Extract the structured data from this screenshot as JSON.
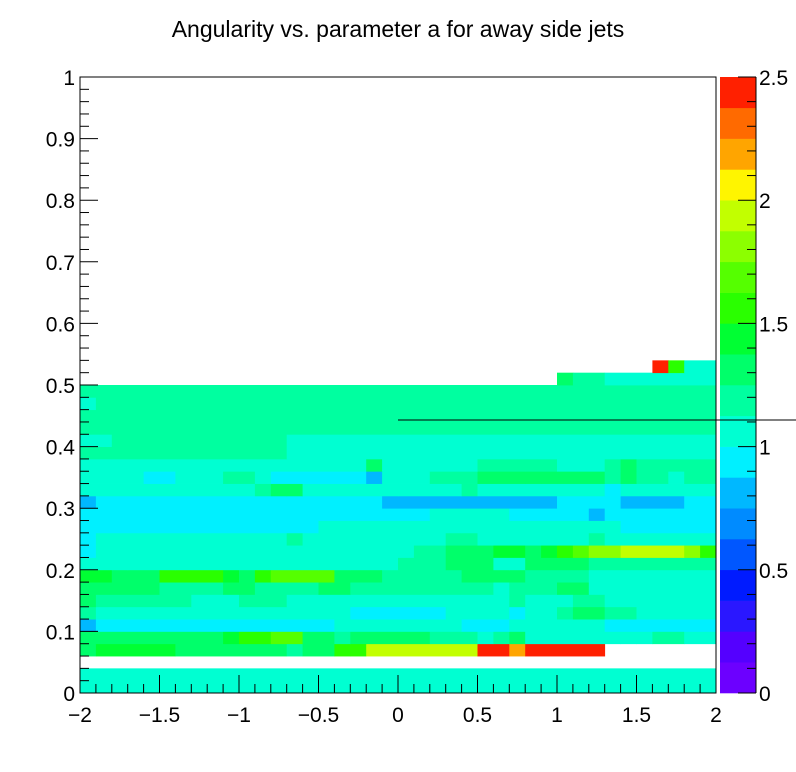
{
  "chart_data": {
    "type": "heatmap",
    "title": "Angularity vs. parameter a for away side jets",
    "xlabel": "",
    "ylabel": "",
    "xlim": [
      -2,
      2
    ],
    "ylim": [
      0,
      1
    ],
    "x_ticks": [
      "−2",
      "−1.5",
      "−1",
      "−0.5",
      "0",
      "0.5",
      "1",
      "1.5",
      "2"
    ],
    "y_ticks": [
      "0",
      "0.1",
      "0.2",
      "0.3",
      "0.4",
      "0.5",
      "0.6",
      "0.7",
      "0.8",
      "0.9",
      "1"
    ],
    "z_ticks": [
      "0",
      "0.5",
      "1",
      "1.5",
      "2",
      "2.5"
    ],
    "zlim": [
      0,
      2.5
    ],
    "grid": false,
    "n_x_bins": 40,
    "n_y_bins": 50,
    "x_bin_width": 0.1,
    "y_bin_width": 0.02,
    "rows": [
      {
        "y": 0.0,
        "cells": [
          [
            -2.0,
            2.0,
            1.05
          ]
        ]
      },
      {
        "y": 0.02,
        "cells": [
          [
            -2.0,
            2.0,
            1.05
          ]
        ]
      },
      {
        "y": 0.06,
        "cells": [
          [
            -2.0,
            -1.9,
            1.35
          ],
          [
            -1.9,
            -1.4,
            1.45
          ],
          [
            -1.4,
            -0.7,
            1.35
          ],
          [
            -0.7,
            -0.6,
            1.15
          ],
          [
            -0.6,
            -0.4,
            1.3
          ],
          [
            -0.4,
            -0.3,
            1.55
          ],
          [
            -0.3,
            -0.2,
            1.6
          ],
          [
            -0.2,
            0.5,
            1.9
          ],
          [
            0.5,
            0.7,
            2.5
          ],
          [
            0.7,
            0.8,
            2.2
          ],
          [
            0.8,
            1.3,
            2.5
          ]
        ]
      },
      {
        "y": 0.08,
        "cells": [
          [
            -2.0,
            -1.3,
            1.25
          ],
          [
            -1.3,
            -1.1,
            1.35
          ],
          [
            -1.1,
            -1.0,
            1.4
          ],
          [
            -1.0,
            -0.8,
            1.6
          ],
          [
            -0.8,
            -0.6,
            1.7
          ],
          [
            -0.6,
            -0.4,
            1.35
          ],
          [
            -0.4,
            -0.3,
            1.15
          ],
          [
            -0.3,
            -0.2,
            1.35
          ],
          [
            -0.2,
            0.2,
            1.3
          ],
          [
            0.2,
            0.5,
            1.2
          ],
          [
            0.5,
            0.6,
            1.05
          ],
          [
            0.6,
            0.7,
            1.2
          ],
          [
            0.7,
            0.8,
            1.3
          ],
          [
            0.8,
            1.4,
            1.05
          ],
          [
            1.4,
            1.5,
            1.0
          ],
          [
            1.5,
            1.6,
            1.05
          ],
          [
            1.6,
            1.8,
            1.15
          ],
          [
            1.8,
            2.0,
            1.05
          ]
        ]
      },
      {
        "y": 0.1,
        "cells": [
          [
            -2.0,
            -1.9,
            0.75
          ],
          [
            -1.9,
            -0.4,
            0.9
          ],
          [
            -0.4,
            0.4,
            1.0
          ],
          [
            0.4,
            0.7,
            0.95
          ],
          [
            0.7,
            1.2,
            1.0
          ],
          [
            1.2,
            1.3,
            1.05
          ],
          [
            1.3,
            2.0,
            0.95
          ]
        ]
      },
      {
        "y": 0.12,
        "cells": [
          [
            -2.0,
            -1.9,
            1.2
          ],
          [
            -1.9,
            -1.0,
            1.05
          ],
          [
            -1.0,
            -0.3,
            1.0
          ],
          [
            -0.3,
            0.3,
            0.95
          ],
          [
            0.3,
            0.7,
            1.0
          ],
          [
            0.7,
            0.8,
            0.95
          ],
          [
            0.8,
            0.9,
            1.1
          ],
          [
            0.9,
            1.0,
            1.05
          ],
          [
            1.0,
            1.1,
            1.2
          ],
          [
            1.1,
            1.3,
            1.35
          ],
          [
            1.3,
            1.5,
            1.2
          ],
          [
            1.5,
            2.0,
            1.1
          ]
        ]
      },
      {
        "y": 0.14,
        "cells": [
          [
            -2.0,
            -1.9,
            1.3
          ],
          [
            -1.9,
            -1.3,
            1.15
          ],
          [
            -1.3,
            -1.0,
            1.05
          ],
          [
            -1.0,
            -0.7,
            1.15
          ],
          [
            -0.7,
            0.2,
            1.1
          ],
          [
            0.2,
            0.7,
            1.05
          ],
          [
            0.7,
            0.8,
            1.15
          ],
          [
            0.8,
            1.1,
            1.05
          ],
          [
            1.1,
            1.3,
            1.15
          ],
          [
            1.3,
            2.0,
            1.1
          ]
        ]
      },
      {
        "y": 0.16,
        "cells": [
          [
            -2.0,
            -1.9,
            1.35
          ],
          [
            -1.9,
            -1.5,
            1.3
          ],
          [
            -1.5,
            -1.1,
            1.15
          ],
          [
            -1.1,
            -0.9,
            1.25
          ],
          [
            -0.9,
            -0.5,
            1.15
          ],
          [
            -0.5,
            -0.3,
            1.25
          ],
          [
            -0.3,
            0.6,
            1.2
          ],
          [
            0.6,
            0.7,
            1.05
          ],
          [
            0.7,
            1.0,
            1.15
          ],
          [
            1.0,
            1.2,
            1.25
          ],
          [
            1.2,
            2.0,
            1.1
          ]
        ]
      },
      {
        "y": 0.18,
        "cells": [
          [
            -2.0,
            -1.8,
            1.45
          ],
          [
            -1.8,
            -1.5,
            1.35
          ],
          [
            -1.5,
            -1.4,
            1.55
          ],
          [
            -1.4,
            -1.1,
            1.6
          ],
          [
            -1.1,
            -1.0,
            1.4
          ],
          [
            -1.0,
            -0.9,
            1.3
          ],
          [
            -0.9,
            -0.8,
            1.55
          ],
          [
            -0.8,
            -0.4,
            1.65
          ],
          [
            -0.4,
            -0.3,
            1.3
          ],
          [
            -0.3,
            -0.1,
            1.35
          ],
          [
            -0.1,
            0.4,
            1.2
          ],
          [
            0.4,
            0.6,
            1.35
          ],
          [
            0.6,
            0.8,
            1.3
          ],
          [
            0.8,
            1.2,
            1.2
          ],
          [
            1.2,
            1.3,
            1.1
          ],
          [
            1.3,
            2.0,
            1.05
          ]
        ]
      },
      {
        "y": 0.2,
        "cells": [
          [
            -2.0,
            -1.9,
            1.05
          ],
          [
            -1.9,
            -1.8,
            1.0
          ],
          [
            -1.8,
            -1.7,
            1.1
          ],
          [
            -1.7,
            -1.4,
            1.05
          ],
          [
            -1.4,
            -0.5,
            1.1
          ],
          [
            -0.5,
            -0.4,
            1.05
          ],
          [
            -0.4,
            -0.3,
            1.0
          ],
          [
            -0.3,
            0.0,
            1.1
          ],
          [
            0.0,
            0.3,
            1.15
          ],
          [
            0.3,
            0.6,
            1.25
          ],
          [
            0.6,
            0.7,
            1.1
          ],
          [
            0.7,
            0.8,
            1.05
          ],
          [
            0.8,
            1.2,
            1.3
          ],
          [
            1.2,
            2.0,
            1.15
          ]
        ]
      },
      {
        "y": 0.22,
        "cells": [
          [
            -2.0,
            -1.9,
            0.9
          ],
          [
            -1.9,
            -1.8,
            1.0
          ],
          [
            -1.8,
            -1.5,
            1.05
          ],
          [
            -1.5,
            -1.3,
            1.0
          ],
          [
            -1.3,
            -0.9,
            1.05
          ],
          [
            -0.9,
            -0.4,
            1.0
          ],
          [
            -0.4,
            -0.3,
            1.05
          ],
          [
            -0.3,
            -0.1,
            1.0
          ],
          [
            -0.1,
            0.1,
            1.05
          ],
          [
            0.1,
            0.3,
            1.15
          ],
          [
            0.3,
            0.6,
            1.3
          ],
          [
            0.6,
            0.8,
            1.4
          ],
          [
            0.8,
            0.9,
            1.35
          ],
          [
            0.9,
            1.0,
            1.45
          ],
          [
            1.0,
            1.1,
            1.55
          ],
          [
            1.1,
            1.2,
            1.65
          ],
          [
            1.2,
            1.4,
            1.85
          ],
          [
            1.4,
            1.8,
            1.9
          ],
          [
            1.8,
            1.9,
            1.75
          ],
          [
            1.9,
            2.0,
            1.6
          ]
        ]
      },
      {
        "y": 0.24,
        "cells": [
          [
            -2.0,
            -1.9,
            0.9
          ],
          [
            -1.9,
            -1.3,
            1.0
          ],
          [
            -1.3,
            -0.7,
            1.05
          ],
          [
            -0.7,
            -0.6,
            1.2
          ],
          [
            -0.6,
            -0.4,
            1.1
          ],
          [
            -0.4,
            0.0,
            1.0
          ],
          [
            0.0,
            0.3,
            1.05
          ],
          [
            0.3,
            0.5,
            1.15
          ],
          [
            0.5,
            1.0,
            1.1
          ],
          [
            1.0,
            1.2,
            1.05
          ],
          [
            1.2,
            1.3,
            1.15
          ],
          [
            1.3,
            1.5,
            1.05
          ],
          [
            1.5,
            1.7,
            1.0
          ],
          [
            1.7,
            2.0,
            1.05
          ]
        ]
      },
      {
        "y": 0.26,
        "cells": [
          [
            -2.0,
            -1.9,
            0.9
          ],
          [
            -1.9,
            -0.9,
            0.95
          ],
          [
            -0.9,
            -0.5,
            0.9
          ],
          [
            -0.5,
            -0.1,
            1.0
          ],
          [
            -0.1,
            0.1,
            1.05
          ],
          [
            0.1,
            0.3,
            1.0
          ],
          [
            0.3,
            0.4,
            1.05
          ],
          [
            0.4,
            0.5,
            1.1
          ],
          [
            0.5,
            0.6,
            1.0
          ],
          [
            0.6,
            1.3,
            1.05
          ],
          [
            1.3,
            1.4,
            1.0
          ],
          [
            1.4,
            2.0,
            0.95
          ]
        ]
      },
      {
        "y": 0.28,
        "cells": [
          [
            -2.0,
            -1.9,
            0.9
          ],
          [
            -1.9,
            -0.7,
            0.9
          ],
          [
            -0.7,
            0.2,
            0.95
          ],
          [
            0.2,
            0.5,
            1.05
          ],
          [
            0.5,
            0.7,
            1.0
          ],
          [
            0.7,
            1.2,
            0.95
          ],
          [
            1.2,
            1.3,
            0.8
          ],
          [
            1.3,
            2.0,
            0.9
          ]
        ]
      },
      {
        "y": 0.3,
        "cells": [
          [
            -2.0,
            -1.9,
            0.75
          ],
          [
            -1.9,
            -0.4,
            0.9
          ],
          [
            -0.4,
            -0.1,
            0.95
          ],
          [
            -0.1,
            1.0,
            0.8
          ],
          [
            1.0,
            1.3,
            0.95
          ],
          [
            1.3,
            1.4,
            0.9
          ],
          [
            1.4,
            1.8,
            0.8
          ],
          [
            1.8,
            2.0,
            0.9
          ]
        ]
      },
      {
        "y": 0.32,
        "cells": [
          [
            -2.0,
            -1.9,
            1.05
          ],
          [
            -1.9,
            -1.1,
            1.1
          ],
          [
            -1.1,
            -0.9,
            1.0
          ],
          [
            -0.9,
            -0.8,
            1.2
          ],
          [
            -0.8,
            -0.7,
            1.3
          ],
          [
            -0.7,
            -0.6,
            1.35
          ],
          [
            -0.6,
            0.0,
            1.1
          ],
          [
            0.0,
            0.4,
            1.1
          ],
          [
            0.4,
            0.5,
            1.15
          ],
          [
            0.5,
            1.0,
            1.1
          ],
          [
            1.0,
            1.1,
            1.0
          ],
          [
            1.1,
            1.3,
            1.05
          ],
          [
            1.3,
            1.4,
            0.95
          ],
          [
            1.4,
            2.0,
            1.1
          ]
        ]
      },
      {
        "y": 0.34,
        "cells": [
          [
            -2.0,
            -1.6,
            1.0
          ],
          [
            -1.6,
            -1.4,
            0.95
          ],
          [
            -1.4,
            -1.1,
            1.0
          ],
          [
            -1.1,
            -0.9,
            1.15
          ],
          [
            -0.9,
            -0.8,
            1.05
          ],
          [
            -0.8,
            -0.2,
            0.95
          ],
          [
            -0.2,
            -0.1,
            0.75
          ],
          [
            -0.1,
            0.0,
            1.0
          ],
          [
            0.0,
            0.2,
            1.05
          ],
          [
            0.2,
            0.4,
            1.15
          ],
          [
            0.4,
            0.5,
            1.2
          ],
          [
            0.5,
            0.8,
            1.35
          ],
          [
            0.8,
            0.9,
            1.3
          ],
          [
            0.9,
            1.3,
            1.35
          ],
          [
            1.3,
            1.4,
            1.2
          ],
          [
            1.4,
            1.5,
            1.35
          ],
          [
            1.5,
            1.7,
            1.2
          ],
          [
            1.7,
            1.8,
            1.1
          ],
          [
            1.8,
            2.0,
            1.2
          ]
        ]
      },
      {
        "y": 0.36,
        "cells": [
          [
            -2.0,
            -1.8,
            1.05
          ],
          [
            -1.8,
            -1.4,
            1.1
          ],
          [
            -1.4,
            -1.0,
            1.05
          ],
          [
            -1.0,
            -0.2,
            1.1
          ],
          [
            -0.2,
            -0.1,
            1.25
          ],
          [
            -0.1,
            0.2,
            1.1
          ],
          [
            0.2,
            0.5,
            1.1
          ],
          [
            0.5,
            0.8,
            1.15
          ],
          [
            0.8,
            1.0,
            1.2
          ],
          [
            1.0,
            1.3,
            1.1
          ],
          [
            1.3,
            1.4,
            1.2
          ],
          [
            1.4,
            1.5,
            1.3
          ],
          [
            1.5,
            2.0,
            1.15
          ]
        ]
      },
      {
        "y": 0.38,
        "cells": [
          [
            -2.0,
            -1.8,
            1.15
          ],
          [
            -1.8,
            -0.7,
            1.15
          ],
          [
            -0.7,
            2.0,
            1.1
          ]
        ]
      },
      {
        "y": 0.4,
        "cells": [
          [
            -2.0,
            -1.9,
            1.05
          ],
          [
            -1.9,
            -1.8,
            1.0
          ],
          [
            -1.8,
            -0.7,
            1.15
          ],
          [
            -0.7,
            2.0,
            1.05
          ]
        ]
      },
      {
        "y": 0.42,
        "cells": [
          [
            -2.0,
            2.0,
            1.15
          ]
        ]
      },
      {
        "y": 0.44,
        "cells": [
          [
            -2.0,
            2.0,
            1.15
          ]
        ]
      },
      {
        "y": 0.46,
        "cells": [
          [
            -2.0,
            -1.9,
            1.05
          ],
          [
            -1.9,
            2.0,
            1.15
          ]
        ]
      },
      {
        "y": 0.48,
        "cells": [
          [
            -2.0,
            2.0,
            1.15
          ]
        ]
      },
      {
        "y": 0.5,
        "cells": [
          [
            1.0,
            1.1,
            1.35
          ],
          [
            1.1,
            1.3,
            1.2
          ],
          [
            1.3,
            2.0,
            1.05
          ]
        ]
      },
      {
        "y": 0.52,
        "cells": [
          [
            1.6,
            1.7,
            2.5
          ],
          [
            1.7,
            1.8,
            1.55
          ],
          [
            1.8,
            2.0,
            1.05
          ]
        ]
      }
    ]
  }
}
